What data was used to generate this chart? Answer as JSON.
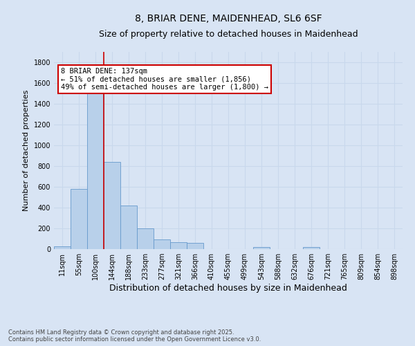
{
  "title_line1": "8, BRIAR DENE, MAIDENHEAD, SL6 6SF",
  "title_line2": "Size of property relative to detached houses in Maidenhead",
  "xlabel": "Distribution of detached houses by size in Maidenhead",
  "ylabel": "Number of detached properties",
  "categories": [
    "11sqm",
    "55sqm",
    "100sqm",
    "144sqm",
    "188sqm",
    "233sqm",
    "277sqm",
    "321sqm",
    "366sqm",
    "410sqm",
    "455sqm",
    "499sqm",
    "543sqm",
    "588sqm",
    "632sqm",
    "676sqm",
    "721sqm",
    "765sqm",
    "809sqm",
    "854sqm",
    "898sqm"
  ],
  "values": [
    30,
    580,
    1500,
    840,
    420,
    200,
    95,
    65,
    60,
    0,
    0,
    0,
    20,
    0,
    0,
    20,
    0,
    0,
    0,
    0,
    0
  ],
  "bar_color": "#b8d0ea",
  "bar_edge_color": "#6699cc",
  "vline_pos": 2.5,
  "vline_color": "#cc0000",
  "annotation_text": "8 BRIAR DENE: 137sqm\n← 51% of detached houses are smaller (1,856)\n49% of semi-detached houses are larger (1,800) →",
  "annotation_box_facecolor": "#ffffff",
  "annotation_box_edgecolor": "#cc0000",
  "ylim": [
    0,
    1900
  ],
  "yticks": [
    0,
    200,
    400,
    600,
    800,
    1000,
    1200,
    1400,
    1600,
    1800
  ],
  "grid_color": "#c8d8ec",
  "background_color": "#d8e4f4",
  "plot_background_color": "#d8e4f4",
  "footer_text": "Contains HM Land Registry data © Crown copyright and database right 2025.\nContains public sector information licensed under the Open Government Licence v3.0.",
  "title_fontsize": 10,
  "subtitle_fontsize": 9,
  "ylabel_fontsize": 8,
  "xlabel_fontsize": 9,
  "tick_fontsize": 7,
  "annotation_fontsize": 7.5,
  "footer_fontsize": 6
}
